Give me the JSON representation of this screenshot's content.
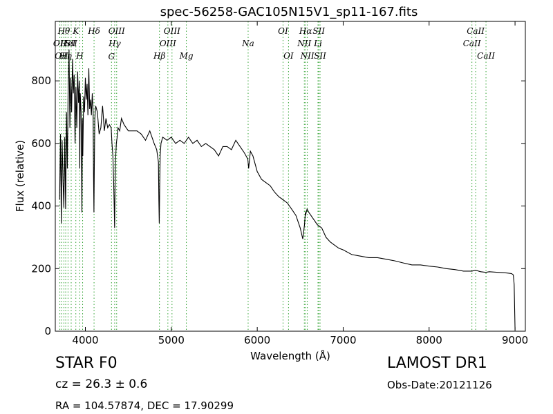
{
  "chart_data": {
    "type": "line",
    "title": "spec-56258-GAC105N15V1_sp11-167.fits",
    "xlabel": "Wavelength (Å)",
    "ylabel": "Flux (relative)",
    "xlim": [
      3650,
      9120
    ],
    "ylim": [
      0,
      990
    ],
    "xticks": [
      {
        "v": 4000,
        "label": "4000"
      },
      {
        "v": 5000,
        "label": "5000"
      },
      {
        "v": 6000,
        "label": "6000"
      },
      {
        "v": 7000,
        "label": "7000"
      },
      {
        "v": 8000,
        "label": "8000"
      },
      {
        "v": 9000,
        "label": "9000"
      }
    ],
    "yticks": [
      {
        "v": 0,
        "label": "0"
      },
      {
        "v": 200,
        "label": "200"
      },
      {
        "v": 400,
        "label": "400"
      },
      {
        "v": 600,
        "label": "600"
      },
      {
        "v": 800,
        "label": "800"
      }
    ],
    "grid": false,
    "line_color": "#000000",
    "marker_color": "#2ca02c",
    "spectrum": {
      "x": [
        3700,
        3710,
        3720,
        3730,
        3740,
        3750,
        3760,
        3770,
        3780,
        3790,
        3800,
        3810,
        3820,
        3830,
        3840,
        3850,
        3860,
        3870,
        3880,
        3890,
        3900,
        3910,
        3920,
        3930,
        3935,
        3940,
        3950,
        3960,
        3965,
        3970,
        3980,
        3990,
        4000,
        4010,
        4020,
        4030,
        4040,
        4050,
        4060,
        4070,
        4080,
        4090,
        4095,
        4100,
        4105,
        4110,
        4120,
        4140,
        4160,
        4180,
        4200,
        4220,
        4240,
        4260,
        4280,
        4300,
        4310,
        4320,
        4330,
        4335,
        4340,
        4345,
        4350,
        4360,
        4370,
        4380,
        4400,
        4420,
        4450,
        4500,
        4550,
        4600,
        4650,
        4700,
        4750,
        4800,
        4830,
        4850,
        4855,
        4860,
        4865,
        4870,
        4880,
        4900,
        4950,
        5000,
        5050,
        5100,
        5150,
        5200,
        5250,
        5300,
        5350,
        5400,
        5450,
        5500,
        5550,
        5600,
        5650,
        5700,
        5750,
        5800,
        5850,
        5890,
        5900,
        5920,
        5950,
        6000,
        6050,
        6100,
        6150,
        6200,
        6250,
        6300,
        6350,
        6400,
        6450,
        6500,
        6530,
        6550,
        6560,
        6563,
        6570,
        6580,
        6600,
        6650,
        6700,
        6750,
        6800,
        6850,
        6900,
        6950,
        7000,
        7100,
        7200,
        7300,
        7400,
        7500,
        7600,
        7700,
        7800,
        7900,
        8000,
        8100,
        8200,
        8300,
        8400,
        8500,
        8540,
        8600,
        8660,
        8700,
        8800,
        8900,
        8960,
        8980,
        8990,
        9000
      ],
      "y": [
        420,
        630,
        345,
        610,
        480,
        395,
        620,
        390,
        700,
        520,
        780,
        900,
        650,
        810,
        700,
        870,
        760,
        820,
        600,
        780,
        650,
        830,
        730,
        800,
        520,
        760,
        700,
        380,
        680,
        560,
        750,
        700,
        810,
        740,
        790,
        690,
        840,
        710,
        740,
        690,
        760,
        700,
        500,
        380,
        560,
        680,
        720,
        700,
        630,
        650,
        720,
        640,
        680,
        650,
        660,
        650,
        600,
        560,
        470,
        400,
        330,
        450,
        540,
        600,
        620,
        650,
        640,
        680,
        660,
        640,
        640,
        640,
        630,
        610,
        640,
        600,
        580,
        540,
        420,
        345,
        460,
        560,
        600,
        620,
        610,
        620,
        600,
        610,
        600,
        620,
        600,
        610,
        590,
        600,
        590,
        580,
        560,
        590,
        590,
        580,
        610,
        590,
        570,
        550,
        520,
        575,
        560,
        510,
        485,
        475,
        465,
        445,
        430,
        420,
        410,
        390,
        370,
        330,
        295,
        340,
        380,
        370,
        380,
        390,
        380,
        360,
        340,
        330,
        300,
        285,
        275,
        265,
        260,
        245,
        240,
        235,
        235,
        230,
        225,
        218,
        212,
        212,
        208,
        205,
        200,
        197,
        192,
        192,
        195,
        190,
        188,
        190,
        188,
        186,
        184,
        180,
        150,
        5
      ]
    },
    "line_markers": [
      {
        "x": 3703,
        "label": "OII",
        "lane": 1
      },
      {
        "x": 3722,
        "label": "OII",
        "lane": 2
      },
      {
        "x": 3750,
        "label": "Hθ",
        "lane": 0
      },
      {
        "x": 3771,
        "label": "Hη",
        "lane": 2
      },
      {
        "x": 3798,
        "label": "HeI",
        "lane": 1
      },
      {
        "x": 3835,
        "label": "SII",
        "lane": 1
      },
      {
        "x": 3889,
        "label": "K",
        "lane": 0
      },
      {
        "x": 3934,
        "label": "H",
        "lane": 2
      },
      {
        "x": 3968,
        "label": "",
        "lane": 0
      },
      {
        "x": 4101,
        "label": "Hδ",
        "lane": 0
      },
      {
        "x": 4304,
        "label": "G",
        "lane": 3
      },
      {
        "x": 4341,
        "label": "Hγ",
        "lane": 1
      },
      {
        "x": 4364,
        "label": "OIII",
        "lane": 0
      },
      {
        "x": 4862,
        "label": "Hβ",
        "lane": 2
      },
      {
        "x": 4960,
        "label": "OIII",
        "lane": 1
      },
      {
        "x": 5008,
        "label": "OIII",
        "lane": 0
      },
      {
        "x": 5175,
        "label": "Mg",
        "lane": 2
      },
      {
        "x": 5894,
        "label": "Na",
        "lane": 1
      },
      {
        "x": 6300,
        "label": "OI",
        "lane": 0
      },
      {
        "x": 6364,
        "label": "OI",
        "lane": 2
      },
      {
        "x": 6548,
        "label": "NII",
        "lane": 1
      },
      {
        "x": 6563,
        "label": "Hα",
        "lane": 0
      },
      {
        "x": 6583,
        "label": "NII",
        "lane": 2
      },
      {
        "x": 6707,
        "label": "Li",
        "lane": 1
      },
      {
        "x": 6716,
        "label": "SII",
        "lane": 0
      },
      {
        "x": 6731,
        "label": "SII",
        "lane": 2
      },
      {
        "x": 8498,
        "label": "CaII",
        "lane": 1
      },
      {
        "x": 8542,
        "label": "CaII",
        "lane": 0
      },
      {
        "x": 8662,
        "label": "CaII",
        "lane": 2
      }
    ]
  },
  "info": {
    "object_class": "STAR   F0",
    "cz": "cz = 26.3 ± 0.6",
    "coords": "RA = 104.57874, DEC = 17.90299",
    "survey": "LAMOST DR1",
    "obs_date": "Obs-Date:20121126"
  }
}
